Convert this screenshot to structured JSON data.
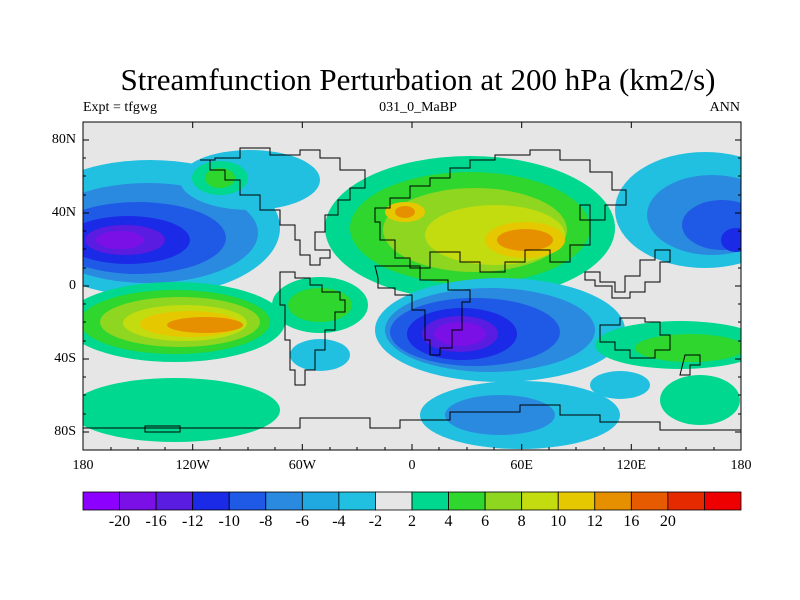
{
  "title": "Streamfunction Perturbation at 200 hPa (km2/s)",
  "subtitle_left": "Expt = tfgwg",
  "subtitle_center": "031_0_MaBP",
  "subtitle_right": "ANN",
  "lat_labels": [
    "80N",
    "40N",
    "0",
    "40S",
    "80S"
  ],
  "lon_labels": [
    "180",
    "120W",
    "60W",
    "0",
    "60E",
    "120E",
    "180"
  ],
  "colorbar": {
    "labels": [
      "-20",
      "-16",
      "-12",
      "-10",
      "-8",
      "-6",
      "-4",
      "-2",
      "2",
      "4",
      "6",
      "8",
      "10",
      "12",
      "16",
      "20"
    ],
    "colors": [
      "#8b00ff",
      "#7a10e6",
      "#5a1ce0",
      "#1a2ae6",
      "#1f5ae6",
      "#2a8ae0",
      "#20a8e0",
      "#22c0e0",
      "#e6e6e6",
      "#00d890",
      "#2ed62e",
      "#8ed620",
      "#c2dc10",
      "#e6c800",
      "#e69000",
      "#e65a00",
      "#e62a00",
      "#ee0000"
    ]
  }
}
